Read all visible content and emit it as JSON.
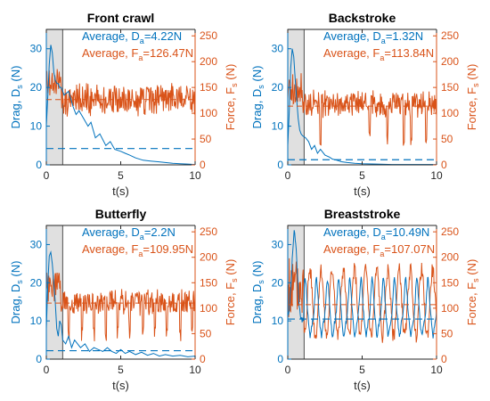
{
  "colors": {
    "drag": "#0072BD",
    "force": "#D95319",
    "shade": "#e0e0e0",
    "shade_border": "#505050",
    "axis": "#262626"
  },
  "chart_data": [
    {
      "type": "line",
      "title": "Front crawl",
      "xlabel": "t(s)",
      "ylabel_left": {
        "text": "Drag, D",
        "sub": "s",
        "unit": " (N)"
      },
      "ylabel_right": {
        "text": "Force, F",
        "sub": "s",
        "unit": " (N)"
      },
      "xlim": [
        0,
        10
      ],
      "xticks": [
        0,
        5,
        10
      ],
      "ylim_left": [
        0,
        35
      ],
      "yticks_left": [
        0,
        10,
        20,
        30
      ],
      "ylim_right": [
        0,
        262.5
      ],
      "yticks_right": [
        0,
        50,
        100,
        150,
        200,
        250
      ],
      "shaded_x": [
        0,
        1.1
      ],
      "annotations": [
        {
          "prefix": "Average, D",
          "sub": "a",
          "value": "=4.22N"
        },
        {
          "prefix": "Average, F",
          "sub": "a",
          "value": "=126.47N"
        }
      ],
      "drag_average": 4.22,
      "force_average": 126.47,
      "series": [
        {
          "axis": "left",
          "t": [
            0,
            0.1,
            0.2,
            0.3,
            0.4,
            0.5,
            0.6,
            0.7,
            0.8,
            0.9,
            1.0,
            1.2,
            1.5,
            1.8,
            2.0,
            2.2,
            2.5,
            2.8,
            3.0,
            3.3,
            3.6,
            4.0,
            4.3,
            4.6,
            5.0,
            5.3,
            5.6,
            6.0,
            6.5,
            7.0,
            7.5,
            8.0,
            8.5,
            9.0,
            9.5,
            10.0
          ],
          "values": [
            10,
            18,
            26,
            31,
            29,
            24,
            22,
            21,
            21,
            20,
            20,
            18,
            19,
            15,
            13,
            14,
            12,
            10,
            11,
            7,
            8,
            5,
            6,
            4,
            3.5,
            3,
            2.5,
            1.8,
            1.2,
            1,
            0.8,
            0.6,
            0.4,
            0.3,
            0.2,
            0.1
          ]
        },
        {
          "axis": "right",
          "pattern": "noise",
          "mean": 126,
          "amplitude": 35,
          "dips": [],
          "seed": 1
        }
      ]
    },
    {
      "type": "line",
      "title": "Backstroke",
      "xlabel": "t(s)",
      "ylabel_left": {
        "text": "Drag, D",
        "sub": "s",
        "unit": " (N)"
      },
      "ylabel_right": {
        "text": "Force, F",
        "sub": "s",
        "unit": " (N)"
      },
      "xlim": [
        0,
        10
      ],
      "xticks": [
        0,
        5,
        10
      ],
      "ylim_left": [
        0,
        35
      ],
      "yticks_left": [
        0,
        10,
        20,
        30
      ],
      "ylim_right": [
        0,
        262.5
      ],
      "yticks_right": [
        0,
        50,
        100,
        150,
        200,
        250
      ],
      "shaded_x": [
        0,
        1.1
      ],
      "annotations": [
        {
          "prefix": "Average, D",
          "sub": "a",
          "value": "=1.32N"
        },
        {
          "prefix": "Average, F",
          "sub": "a",
          "value": "=113.84N"
        }
      ],
      "drag_average": 1.32,
      "force_average": 113.84,
      "series": [
        {
          "axis": "left",
          "t": [
            0,
            0.1,
            0.2,
            0.3,
            0.4,
            0.5,
            0.6,
            0.7,
            0.8,
            0.9,
            1.0,
            1.2,
            1.4,
            1.6,
            1.8,
            2.0,
            2.2,
            2.5,
            2.8,
            3.0,
            3.3,
            3.6,
            4.0,
            4.5,
            5.0,
            6.0,
            7.0,
            8.0,
            9.0,
            10.0
          ],
          "values": [
            5,
            14,
            25,
            30,
            28,
            22,
            17,
            12,
            9,
            8,
            7.5,
            7,
            6,
            4,
            5,
            3,
            4,
            2.5,
            2,
            1.5,
            1.2,
            0.8,
            0.6,
            0.4,
            0.3,
            0.2,
            0.1,
            0.1,
            0.1,
            0.1
          ]
        },
        {
          "axis": "right",
          "pattern": "noise",
          "mean": 118,
          "amplitude": 28,
          "dips": [
            2.2,
            5.5,
            6.7,
            7.8,
            8.3,
            9.3
          ],
          "seed": 2
        }
      ]
    },
    {
      "type": "line",
      "title": "Butterfly",
      "xlabel": "t(s)",
      "ylabel_left": {
        "text": "Drag, D",
        "sub": "s",
        "unit": " (N)"
      },
      "ylabel_right": {
        "text": "Force, F",
        "sub": "s",
        "unit": " (N)"
      },
      "xlim": [
        0,
        10
      ],
      "xticks": [
        0,
        5,
        10
      ],
      "ylim_left": [
        0,
        35
      ],
      "yticks_left": [
        0,
        10,
        20,
        30
      ],
      "ylim_right": [
        0,
        262.5
      ],
      "yticks_right": [
        0,
        50,
        100,
        150,
        200,
        250
      ],
      "shaded_x": [
        0,
        1.1
      ],
      "annotations": [
        {
          "prefix": "Average, D",
          "sub": "a",
          "value": "=2.2N"
        },
        {
          "prefix": "Average, F",
          "sub": "a",
          "value": "=109.95N"
        }
      ],
      "drag_average": 2.2,
      "force_average": 109.95,
      "series": [
        {
          "axis": "left",
          "t": [
            0,
            0.1,
            0.2,
            0.3,
            0.4,
            0.5,
            0.6,
            0.7,
            0.8,
            0.9,
            1.0,
            1.1,
            1.3,
            1.5,
            1.7,
            1.9,
            2.1,
            2.3,
            2.6,
            2.9,
            3.2,
            3.5,
            3.8,
            4.1,
            4.4,
            4.7,
            5.0,
            5.3,
            5.6,
            6.0,
            6.4,
            6.8,
            7.2,
            7.6,
            8.0,
            8.5,
            9.0,
            9.5,
            10.0
          ],
          "values": [
            8,
            20,
            27,
            28,
            25,
            20,
            15,
            8,
            6,
            10,
            9,
            5,
            4,
            6,
            3,
            5,
            4,
            3,
            4,
            2,
            3,
            2.5,
            2,
            3,
            2,
            1.5,
            2.5,
            1.5,
            2,
            1.2,
            1.8,
            1,
            1.5,
            0.8,
            1.2,
            0.8,
            1,
            0.6,
            0.8
          ]
        },
        {
          "axis": "right",
          "pattern": "noise",
          "mean": 112,
          "amplitude": 28,
          "dips": [
            1.5,
            2.4,
            3.2,
            4.0,
            4.8,
            5.6,
            6.5,
            7.3,
            8.1,
            9.0,
            9.8
          ],
          "seed": 3
        }
      ]
    },
    {
      "type": "line",
      "title": "Breaststroke",
      "xlabel": "t(s)",
      "ylabel_left": {
        "text": "Drag, D",
        "sub": "s",
        "unit": " (N)"
      },
      "ylabel_right": {
        "text": "Force, F",
        "sub": "s",
        "unit": " (N)"
      },
      "xlim": [
        0,
        10
      ],
      "xticks": [
        0,
        5,
        10
      ],
      "ylim_left": [
        0,
        35
      ],
      "yticks_left": [
        0,
        10,
        20,
        30
      ],
      "ylim_right": [
        0,
        262.5
      ],
      "yticks_right": [
        0,
        50,
        100,
        150,
        200,
        250
      ],
      "shaded_x": [
        0,
        1.1
      ],
      "annotations": [
        {
          "prefix": "Average, D",
          "sub": "a",
          "value": "=10.49N"
        },
        {
          "prefix": "Average, F",
          "sub": "a",
          "value": "=107.07N"
        }
      ],
      "drag_average": 10.49,
      "force_average": 107.07,
      "series": [
        {
          "axis": "left",
          "pattern": "periodic",
          "period": 0.75,
          "base": 10,
          "amplitude": 11,
          "phase": 0.2,
          "start_peak": 33,
          "seed": 4
        },
        {
          "axis": "right",
          "pattern": "periodic_force",
          "period": 0.75,
          "mean": 110,
          "amplitude": 65,
          "phase": 0.55,
          "seed": 5
        }
      ]
    }
  ]
}
